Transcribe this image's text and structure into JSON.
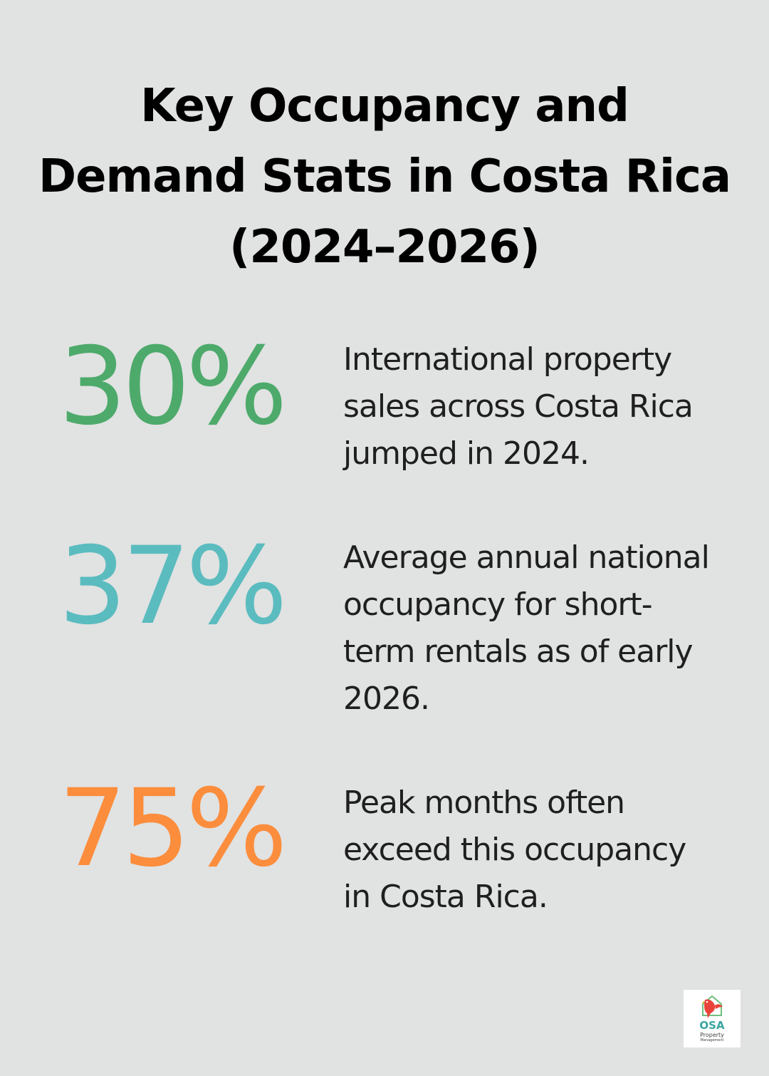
{
  "title_lines": [
    "Key Occupancy and",
    "Demand Stats in Costa Rica",
    "(2024–2026)"
  ],
  "stats": [
    {
      "value": "30%",
      "color": "#4daa6b",
      "description_lines": [
        "International property",
        "sales across Costa Rica",
        "jumped in 2024."
      ]
    },
    {
      "value": "37%",
      "color": "#5bbcbf",
      "description_lines": [
        "Average annual national",
        "occupancy for short-",
        "term rentals as of early",
        "2026."
      ]
    },
    {
      "value": "75%",
      "color": "#fb8d3c",
      "description_lines": [
        "Peak months often",
        "exceed this occupancy",
        "in Costa Rica."
      ]
    }
  ],
  "logo": {
    "brand": "OSA",
    "line1": "Property",
    "line2": "Management",
    "icon": "house-parrot-icon"
  }
}
